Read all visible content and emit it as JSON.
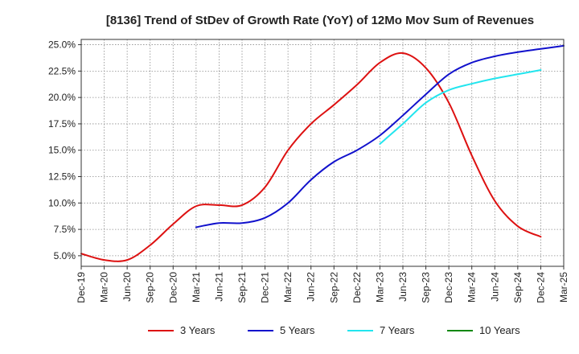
{
  "chart_data": {
    "type": "line",
    "title": "[8136]  Trend of StDev of Growth Rate (YoY) of 12Mo Mov Sum of Revenues",
    "xlabel": "",
    "ylabel": "",
    "ylim": [
      4.0,
      25.5
    ],
    "y_ticks": [
      5.0,
      7.5,
      10.0,
      12.5,
      15.0,
      17.5,
      20.0,
      22.5,
      25.0
    ],
    "y_tick_labels": [
      "5.0%",
      "7.5%",
      "10.0%",
      "12.5%",
      "15.0%",
      "17.5%",
      "20.0%",
      "22.5%",
      "25.0%"
    ],
    "x_ticks": [
      "Dec-19",
      "Mar-20",
      "Jun-20",
      "Sep-20",
      "Dec-20",
      "Mar-21",
      "Jun-21",
      "Sep-21",
      "Dec-21",
      "Mar-22",
      "Jun-22",
      "Sep-22",
      "Dec-22",
      "Mar-23",
      "Jun-23",
      "Sep-23",
      "Dec-23",
      "Mar-24",
      "Jun-24",
      "Sep-24",
      "Dec-24",
      "Mar-25"
    ],
    "grid": true,
    "legend_position": "bottom",
    "series": [
      {
        "name": "3 Years",
        "color": "#dd1111",
        "start_index": 0,
        "values": [
          5.2,
          4.6,
          4.6,
          6.0,
          8.0,
          9.7,
          9.8,
          9.8,
          11.5,
          15.0,
          17.5,
          19.3,
          21.2,
          23.3,
          24.2,
          22.8,
          19.5,
          14.5,
          10.2,
          7.8,
          6.8
        ]
      },
      {
        "name": "5 Years",
        "color": "#1111cc",
        "start_index": 5,
        "values": [
          7.7,
          8.1,
          8.1,
          8.6,
          10.0,
          12.2,
          13.9,
          15.0,
          16.4,
          18.3,
          20.3,
          22.2,
          23.3,
          23.9,
          24.3,
          24.6,
          24.9
        ]
      },
      {
        "name": "7 Years",
        "color": "#22e5ee",
        "start_index": 13,
        "values": [
          15.6,
          17.5,
          19.5,
          20.7,
          21.3,
          21.8,
          22.2,
          22.6
        ]
      },
      {
        "name": "10 Years",
        "color": "#118811",
        "start_index": 0,
        "values": []
      }
    ]
  }
}
